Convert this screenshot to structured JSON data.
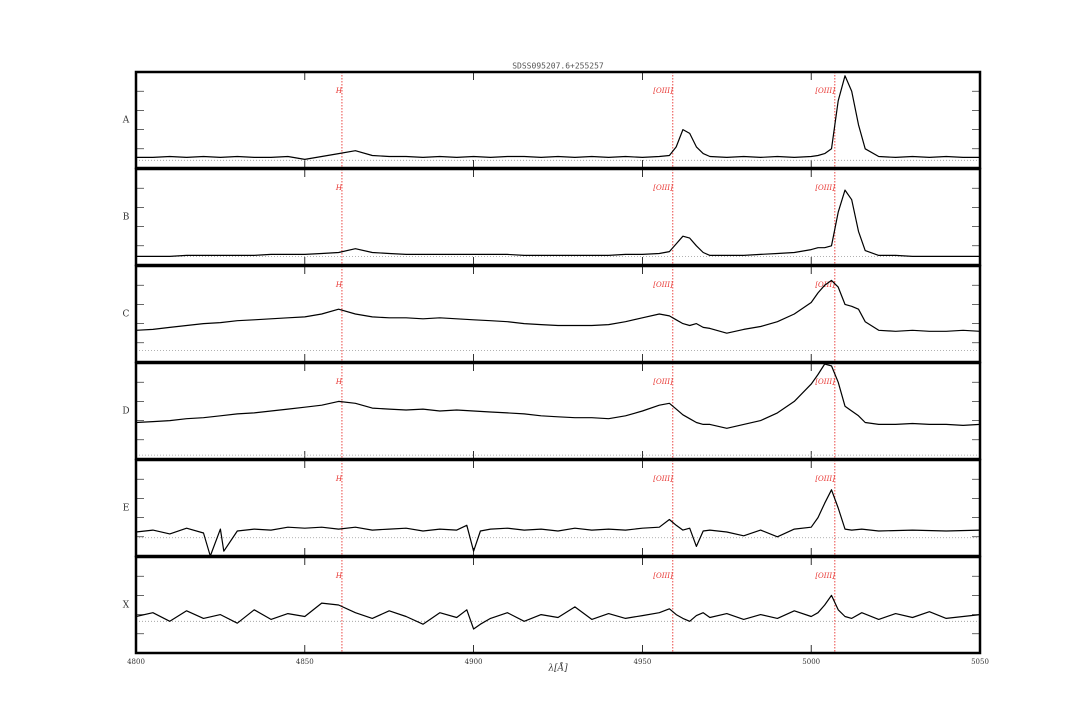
{
  "chart_data": [
    {
      "type": "line",
      "title": "SDSS095207.6+255257",
      "label": "A",
      "color": "#000000",
      "marker_color": "#e8322e",
      "xlim": [
        4800,
        5050
      ],
      "xticks": [
        4800,
        4850,
        4900,
        4950,
        5000,
        5050
      ],
      "show_xtick_labels": false,
      "ylim": [
        0,
        1
      ],
      "yticks": [
        0.2,
        0.4,
        0.6,
        0.8
      ],
      "reference_line": 0.08,
      "markers": [
        {
          "value": 4861,
          "label": "H"
        },
        {
          "value": 4959,
          "label": "[OIII]"
        },
        {
          "value": 5007,
          "label": "[OIII]"
        }
      ],
      "x": [
        4800,
        4805,
        4810,
        4815,
        4820,
        4825,
        4830,
        4835,
        4840,
        4845,
        4850,
        4855,
        4860,
        4865,
        4870,
        4875,
        4880,
        4885,
        4890,
        4895,
        4900,
        4905,
        4910,
        4915,
        4920,
        4925,
        4930,
        4935,
        4940,
        4945,
        4950,
        4955,
        4958,
        4960,
        4962,
        4964,
        4966,
        4968,
        4970,
        4975,
        4980,
        4985,
        4990,
        4995,
        5000,
        5002,
        5004,
        5006,
        5008,
        5010,
        5012,
        5014,
        5016,
        5020,
        5025,
        5030,
        5035,
        5040,
        5045,
        5050
      ],
      "values": [
        0.11,
        0.11,
        0.12,
        0.11,
        0.12,
        0.11,
        0.12,
        0.11,
        0.11,
        0.12,
        0.09,
        0.12,
        0.15,
        0.18,
        0.13,
        0.12,
        0.12,
        0.11,
        0.12,
        0.11,
        0.12,
        0.11,
        0.12,
        0.12,
        0.11,
        0.12,
        0.11,
        0.12,
        0.11,
        0.12,
        0.11,
        0.12,
        0.13,
        0.22,
        0.4,
        0.36,
        0.22,
        0.15,
        0.12,
        0.11,
        0.12,
        0.11,
        0.12,
        0.11,
        0.12,
        0.13,
        0.15,
        0.2,
        0.7,
        0.96,
        0.8,
        0.45,
        0.2,
        0.12,
        0.11,
        0.12,
        0.11,
        0.12,
        0.11,
        0.11
      ]
    },
    {
      "type": "line",
      "label": "B",
      "color": "#000000",
      "marker_color": "#e8322e",
      "xlim": [
        4800,
        5050
      ],
      "xticks": [
        4800,
        4850,
        4900,
        4950,
        5000,
        5050
      ],
      "show_xtick_labels": false,
      "ylim": [
        0,
        1
      ],
      "yticks": [
        0.2,
        0.4,
        0.6,
        0.8
      ],
      "reference_line": 0.09,
      "markers": [
        {
          "value": 4861,
          "label": "H"
        },
        {
          "value": 4959,
          "label": "[OIII]"
        },
        {
          "value": 5007,
          "label": "[OIII]"
        }
      ],
      "x": [
        4800,
        4805,
        4810,
        4815,
        4820,
        4825,
        4830,
        4835,
        4840,
        4845,
        4850,
        4855,
        4860,
        4865,
        4870,
        4875,
        4880,
        4885,
        4890,
        4895,
        4900,
        4905,
        4910,
        4915,
        4920,
        4925,
        4930,
        4935,
        4940,
        4945,
        4950,
        4955,
        4958,
        4960,
        4962,
        4964,
        4966,
        4968,
        4970,
        4975,
        4980,
        4985,
        4990,
        4995,
        5000,
        5002,
        5004,
        5006,
        5008,
        5010,
        5012,
        5014,
        5016,
        5020,
        5025,
        5030,
        5035,
        5040,
        5045,
        5050
      ],
      "values": [
        0.09,
        0.09,
        0.09,
        0.1,
        0.1,
        0.1,
        0.1,
        0.1,
        0.11,
        0.11,
        0.11,
        0.12,
        0.13,
        0.17,
        0.13,
        0.12,
        0.11,
        0.11,
        0.11,
        0.11,
        0.11,
        0.11,
        0.11,
        0.1,
        0.1,
        0.1,
        0.1,
        0.1,
        0.1,
        0.11,
        0.11,
        0.12,
        0.14,
        0.22,
        0.3,
        0.28,
        0.2,
        0.13,
        0.1,
        0.1,
        0.1,
        0.11,
        0.12,
        0.13,
        0.16,
        0.18,
        0.18,
        0.2,
        0.55,
        0.78,
        0.68,
        0.35,
        0.15,
        0.1,
        0.1,
        0.09,
        0.09,
        0.09,
        0.09,
        0.09
      ]
    },
    {
      "type": "line",
      "label": "C",
      "color": "#000000",
      "marker_color": "#e8322e",
      "xlim": [
        4800,
        5050
      ],
      "xticks": [
        4800,
        4850,
        4900,
        4950,
        5000,
        5050
      ],
      "show_xtick_labels": false,
      "ylim": [
        0,
        1
      ],
      "yticks": [
        0.2,
        0.4,
        0.6,
        0.8
      ],
      "reference_line": 0.12,
      "markers": [
        {
          "value": 4861,
          "label": "H"
        },
        {
          "value": 4959,
          "label": "[OIII]"
        },
        {
          "value": 5007,
          "label": "[OIII]"
        }
      ],
      "x": [
        4800,
        4805,
        4810,
        4815,
        4820,
        4825,
        4830,
        4835,
        4840,
        4845,
        4850,
        4855,
        4860,
        4865,
        4870,
        4875,
        4880,
        4885,
        4890,
        4895,
        4900,
        4905,
        4910,
        4915,
        4920,
        4925,
        4930,
        4935,
        4940,
        4945,
        4950,
        4955,
        4958,
        4960,
        4962,
        4964,
        4966,
        4968,
        4970,
        4975,
        4980,
        4985,
        4990,
        4995,
        5000,
        5002,
        5004,
        5006,
        5008,
        5010,
        5012,
        5014,
        5016,
        5020,
        5025,
        5030,
        5035,
        5040,
        5045,
        5050
      ],
      "values": [
        0.33,
        0.34,
        0.36,
        0.38,
        0.4,
        0.41,
        0.43,
        0.44,
        0.45,
        0.46,
        0.47,
        0.5,
        0.55,
        0.5,
        0.47,
        0.46,
        0.46,
        0.45,
        0.46,
        0.45,
        0.44,
        0.43,
        0.42,
        0.4,
        0.39,
        0.38,
        0.38,
        0.38,
        0.39,
        0.42,
        0.46,
        0.5,
        0.48,
        0.44,
        0.4,
        0.38,
        0.4,
        0.36,
        0.35,
        0.3,
        0.34,
        0.37,
        0.42,
        0.5,
        0.62,
        0.72,
        0.8,
        0.85,
        0.78,
        0.6,
        0.58,
        0.55,
        0.42,
        0.33,
        0.32,
        0.33,
        0.32,
        0.32,
        0.33,
        0.32
      ]
    },
    {
      "type": "line",
      "label": "D",
      "color": "#000000",
      "marker_color": "#e8322e",
      "xlim": [
        4800,
        5050
      ],
      "xticks": [
        4800,
        4850,
        4900,
        4950,
        5000,
        5050
      ],
      "show_xtick_labels": false,
      "ylim": [
        0,
        1
      ],
      "yticks": [
        0.2,
        0.4,
        0.6,
        0.8
      ],
      "reference_line": 0.04,
      "markers": [
        {
          "value": 4861,
          "label": "H"
        },
        {
          "value": 4959,
          "label": "[OIII]"
        },
        {
          "value": 5007,
          "label": "[OIII]"
        }
      ],
      "x": [
        4800,
        4805,
        4810,
        4815,
        4820,
        4825,
        4830,
        4835,
        4840,
        4845,
        4850,
        4855,
        4860,
        4865,
        4870,
        4875,
        4880,
        4885,
        4890,
        4895,
        4900,
        4905,
        4910,
        4915,
        4920,
        4925,
        4930,
        4935,
        4940,
        4945,
        4950,
        4955,
        4958,
        4960,
        4962,
        4964,
        4966,
        4968,
        4970,
        4975,
        4980,
        4985,
        4990,
        4995,
        5000,
        5002,
        5004,
        5006,
        5008,
        5010,
        5012,
        5014,
        5016,
        5020,
        5025,
        5030,
        5035,
        5040,
        5045,
        5050
      ],
      "values": [
        0.38,
        0.39,
        0.4,
        0.42,
        0.43,
        0.45,
        0.47,
        0.48,
        0.5,
        0.52,
        0.54,
        0.56,
        0.6,
        0.58,
        0.53,
        0.52,
        0.51,
        0.52,
        0.5,
        0.51,
        0.5,
        0.49,
        0.48,
        0.47,
        0.45,
        0.44,
        0.43,
        0.43,
        0.42,
        0.45,
        0.5,
        0.56,
        0.58,
        0.52,
        0.46,
        0.42,
        0.38,
        0.36,
        0.36,
        0.32,
        0.36,
        0.4,
        0.48,
        0.6,
        0.78,
        0.88,
        0.99,
        0.97,
        0.8,
        0.55,
        0.5,
        0.45,
        0.38,
        0.36,
        0.36,
        0.37,
        0.36,
        0.36,
        0.35,
        0.36
      ]
    },
    {
      "type": "line",
      "label": "E",
      "color": "#000000",
      "marker_color": "#e8322e",
      "xlim": [
        4800,
        5050
      ],
      "xticks": [
        4800,
        4850,
        4900,
        4950,
        5000,
        5050
      ],
      "show_xtick_labels": false,
      "ylim": [
        0,
        1
      ],
      "yticks": [
        0.2,
        0.4,
        0.6,
        0.8
      ],
      "reference_line": 0.19,
      "markers": [
        {
          "value": 4861,
          "label": "H"
        },
        {
          "value": 4959,
          "label": "[OIII]"
        },
        {
          "value": 5007,
          "label": "[OIII]"
        }
      ],
      "x": [
        4800,
        4805,
        4810,
        4815,
        4820,
        4822,
        4825,
        4826,
        4830,
        4835,
        4840,
        4845,
        4850,
        4855,
        4860,
        4865,
        4870,
        4875,
        4880,
        4885,
        4890,
        4895,
        4898,
        4900,
        4902,
        4905,
        4910,
        4915,
        4920,
        4925,
        4930,
        4935,
        4940,
        4945,
        4950,
        4955,
        4958,
        4960,
        4962,
        4964,
        4966,
        4968,
        4970,
        4975,
        4980,
        4985,
        4990,
        4995,
        5000,
        5002,
        5004,
        5006,
        5008,
        5010,
        5012,
        5015,
        5020,
        5030,
        5040,
        5050
      ],
      "values": [
        0.25,
        0.27,
        0.23,
        0.29,
        0.24,
        0.0,
        0.28,
        0.05,
        0.26,
        0.28,
        0.27,
        0.3,
        0.29,
        0.3,
        0.28,
        0.3,
        0.27,
        0.28,
        0.29,
        0.26,
        0.28,
        0.27,
        0.32,
        0.05,
        0.26,
        0.28,
        0.29,
        0.27,
        0.28,
        0.26,
        0.29,
        0.27,
        0.28,
        0.27,
        0.29,
        0.3,
        0.38,
        0.32,
        0.27,
        0.29,
        0.1,
        0.26,
        0.27,
        0.25,
        0.21,
        0.27,
        0.2,
        0.28,
        0.3,
        0.4,
        0.55,
        0.69,
        0.5,
        0.28,
        0.27,
        0.28,
        0.26,
        0.27,
        0.26,
        0.27
      ]
    },
    {
      "type": "line",
      "label": "X",
      "color": "#000000",
      "marker_color": "#e8322e",
      "xlim": [
        4800,
        5050
      ],
      "xticks": [
        4800,
        4850,
        4900,
        4950,
        5000,
        5050
      ],
      "show_xtick_labels": true,
      "xlabel": "λ[Å]",
      "ylim": [
        0,
        1
      ],
      "yticks": [
        0.2,
        0.4,
        0.6,
        0.8
      ],
      "reference_line": 0.33,
      "markers": [
        {
          "value": 4861,
          "label": "H"
        },
        {
          "value": 4959,
          "label": "[OIII]"
        },
        {
          "value": 5007,
          "label": "[OIII]"
        }
      ],
      "x": [
        4800,
        4805,
        4810,
        4815,
        4820,
        4825,
        4830,
        4835,
        4840,
        4845,
        4850,
        4855,
        4860,
        4865,
        4870,
        4875,
        4880,
        4885,
        4890,
        4895,
        4898,
        4900,
        4902,
        4905,
        4910,
        4915,
        4920,
        4925,
        4930,
        4935,
        4940,
        4945,
        4950,
        4955,
        4958,
        4960,
        4962,
        4964,
        4966,
        4968,
        4970,
        4975,
        4980,
        4985,
        4990,
        4995,
        5000,
        5002,
        5004,
        5006,
        5008,
        5010,
        5012,
        5015,
        5020,
        5025,
        5030,
        5035,
        5040,
        5050
      ],
      "values": [
        0.38,
        0.42,
        0.33,
        0.44,
        0.36,
        0.4,
        0.31,
        0.45,
        0.35,
        0.41,
        0.38,
        0.52,
        0.5,
        0.42,
        0.36,
        0.44,
        0.38,
        0.3,
        0.42,
        0.37,
        0.45,
        0.25,
        0.3,
        0.36,
        0.42,
        0.33,
        0.4,
        0.37,
        0.48,
        0.35,
        0.41,
        0.36,
        0.39,
        0.42,
        0.46,
        0.4,
        0.36,
        0.33,
        0.39,
        0.42,
        0.37,
        0.41,
        0.35,
        0.4,
        0.36,
        0.44,
        0.38,
        0.42,
        0.5,
        0.6,
        0.45,
        0.38,
        0.36,
        0.42,
        0.35,
        0.41,
        0.37,
        0.43,
        0.36,
        0.4
      ]
    }
  ]
}
